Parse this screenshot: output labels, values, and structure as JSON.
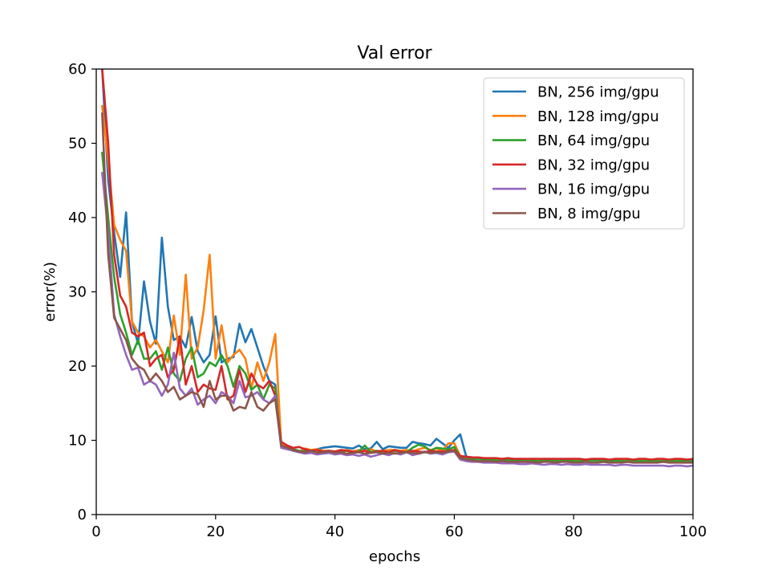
{
  "chart_data": {
    "type": "line",
    "title": "Val error",
    "xlabel": "epochs",
    "ylabel": "error(%)",
    "xlim": [
      0,
      100
    ],
    "ylim": [
      0,
      60
    ],
    "xticks": [
      0,
      20,
      40,
      60,
      80,
      100
    ],
    "yticks": [
      0,
      10,
      20,
      30,
      40,
      50,
      60
    ],
    "grid": false,
    "legend_position": "top-right",
    "x": [
      1,
      2,
      3,
      4,
      5,
      6,
      7,
      8,
      9,
      10,
      11,
      12,
      13,
      14,
      15,
      16,
      17,
      18,
      19,
      20,
      21,
      22,
      23,
      24,
      25,
      26,
      27,
      28,
      29,
      30,
      31,
      32,
      33,
      34,
      35,
      36,
      37,
      38,
      39,
      40,
      41,
      42,
      43,
      44,
      45,
      46,
      47,
      48,
      49,
      50,
      51,
      52,
      53,
      54,
      55,
      56,
      57,
      58,
      59,
      60,
      61,
      62,
      63,
      64,
      65,
      66,
      67,
      68,
      69,
      70,
      71,
      72,
      73,
      74,
      75,
      76,
      77,
      78,
      79,
      80,
      81,
      82,
      83,
      84,
      85,
      86,
      87,
      88,
      89,
      90,
      91,
      92,
      93,
      94,
      95,
      96,
      97,
      98,
      99,
      100
    ],
    "series": [
      {
        "name": "BN, 256 img/gpu",
        "color": "#1f77b4",
        "values": [
          60.0,
          45.0,
          38.0,
          32.0,
          40.7,
          26.0,
          23.0,
          31.4,
          26.0,
          23.0,
          37.3,
          28.0,
          23.5,
          24.0,
          22.5,
          26.6,
          22.0,
          20.5,
          21.5,
          26.7,
          20.5,
          21.0,
          21.2,
          25.7,
          23.2,
          25.0,
          22.5,
          20.0,
          18.0,
          17.5,
          9.5,
          9.0,
          8.6,
          8.4,
          8.7,
          8.6,
          8.8,
          9.0,
          9.1,
          9.2,
          9.1,
          9.0,
          8.9,
          9.3,
          8.8,
          8.9,
          9.8,
          8.8,
          9.2,
          9.1,
          9.0,
          9.0,
          9.8,
          9.6,
          9.5,
          9.3,
          10.2,
          9.6,
          9.0,
          10.0,
          10.8,
          7.8,
          7.7,
          7.6,
          7.5,
          7.5,
          7.4,
          7.3,
          7.4,
          7.4,
          7.3,
          7.3,
          7.4,
          7.3,
          7.3,
          7.4,
          7.4,
          7.3,
          7.4,
          7.3,
          7.4,
          7.4,
          7.3,
          7.3,
          7.3,
          7.2,
          7.3,
          7.3,
          7.4,
          7.3,
          7.3,
          7.2,
          7.3,
          7.3,
          7.2,
          7.3,
          7.2,
          7.3,
          7.3,
          7.2
        ]
      },
      {
        "name": "BN, 128 img/gpu",
        "color": "#ff7f0e",
        "values": [
          55.0,
          47.7,
          39.0,
          37.0,
          35.5,
          26.0,
          24.5,
          24.0,
          22.5,
          23.5,
          22.0,
          20.5,
          26.8,
          21.5,
          32.3,
          21.0,
          22.5,
          27.5,
          35.0,
          21.0,
          25.5,
          20.5,
          21.5,
          22.2,
          21.0,
          17.0,
          20.5,
          18.0,
          20.5,
          24.3,
          9.5,
          9.2,
          8.8,
          8.5,
          8.9,
          8.7,
          8.8,
          8.6,
          8.6,
          8.5,
          8.6,
          8.7,
          8.5,
          8.7,
          8.6,
          8.8,
          8.5,
          8.6,
          8.7,
          8.7,
          8.6,
          8.7,
          8.5,
          8.8,
          9.0,
          8.7,
          8.9,
          8.6,
          9.6,
          9.6,
          7.9,
          7.7,
          7.6,
          7.6,
          7.6,
          7.5,
          7.5,
          7.4,
          7.5,
          7.4,
          7.5,
          7.4,
          7.5,
          7.4,
          7.4,
          7.4,
          7.3,
          7.4,
          7.4,
          7.3,
          7.3,
          7.4,
          7.4,
          7.3,
          7.4,
          7.3,
          7.4,
          7.3,
          7.3,
          7.4,
          7.3,
          7.4,
          7.3,
          7.4,
          7.3,
          7.3,
          7.4,
          7.3,
          7.4,
          7.4
        ]
      },
      {
        "name": "BN, 64 img/gpu",
        "color": "#2ca02c",
        "values": [
          48.7,
          40.0,
          32.0,
          27.0,
          24.5,
          21.5,
          23.5,
          21.0,
          21.0,
          22.0,
          19.5,
          22.5,
          19.0,
          18.0,
          21.0,
          22.5,
          18.5,
          19.0,
          20.5,
          20.0,
          21.5,
          20.0,
          17.2,
          20.0,
          19.0,
          16.8,
          17.5,
          15.5,
          17.5,
          17.0,
          9.2,
          9.0,
          8.8,
          8.6,
          8.5,
          8.3,
          8.4,
          8.5,
          8.6,
          8.4,
          8.5,
          8.6,
          8.4,
          8.5,
          9.3,
          8.4,
          8.6,
          8.5,
          8.4,
          8.6,
          8.5,
          8.4,
          9.0,
          9.4,
          9.2,
          8.6,
          9.0,
          8.9,
          8.8,
          9.1,
          7.8,
          7.6,
          7.5,
          7.5,
          7.4,
          7.4,
          7.3,
          7.3,
          7.4,
          7.3,
          7.3,
          7.2,
          7.3,
          7.2,
          7.3,
          7.3,
          7.2,
          7.3,
          7.3,
          7.2,
          7.2,
          7.3,
          7.3,
          7.3,
          7.2,
          7.3,
          7.3,
          7.2,
          7.2,
          7.3,
          7.2,
          7.2,
          7.3,
          7.2,
          7.2,
          7.3,
          7.2,
          7.2,
          7.3,
          7.3
        ]
      },
      {
        "name": "BN, 32 img/gpu",
        "color": "#d62728",
        "values": [
          60.0,
          50.0,
          35.0,
          29.5,
          28.0,
          24.5,
          24.0,
          24.5,
          20.0,
          21.0,
          21.5,
          18.5,
          19.5,
          24.0,
          17.5,
          20.0,
          16.5,
          17.5,
          17.0,
          16.8,
          20.0,
          15.5,
          16.0,
          19.5,
          16.5,
          19.0,
          17.5,
          17.0,
          18.0,
          16.0,
          9.8,
          9.3,
          9.0,
          9.1,
          8.8,
          8.6,
          8.7,
          8.5,
          8.6,
          8.5,
          8.7,
          8.6,
          8.5,
          8.4,
          8.6,
          8.3,
          8.5,
          8.6,
          8.4,
          8.7,
          8.5,
          8.4,
          8.6,
          8.5,
          8.4,
          8.6,
          8.5,
          8.5,
          8.6,
          8.7,
          7.9,
          7.8,
          7.7,
          7.7,
          7.6,
          7.6,
          7.6,
          7.5,
          7.6,
          7.5,
          7.5,
          7.5,
          7.5,
          7.5,
          7.5,
          7.5,
          7.5,
          7.5,
          7.5,
          7.5,
          7.5,
          7.4,
          7.5,
          7.5,
          7.5,
          7.4,
          7.5,
          7.5,
          7.5,
          7.4,
          7.5,
          7.5,
          7.4,
          7.5,
          7.5,
          7.4,
          7.5,
          7.5,
          7.4,
          7.5
        ]
      },
      {
        "name": "BN, 16 img/gpu",
        "color": "#9467bd",
        "values": [
          46.0,
          38.0,
          27.0,
          24.0,
          21.5,
          19.5,
          19.8,
          17.5,
          18.0,
          17.5,
          16.0,
          17.5,
          21.8,
          17.0,
          16.0,
          17.0,
          14.8,
          15.5,
          16.0,
          15.0,
          16.5,
          16.0,
          15.0,
          18.0,
          15.8,
          16.0,
          16.5,
          15.5,
          15.0,
          16.0,
          9.0,
          8.8,
          8.6,
          8.4,
          8.2,
          8.3,
          8.1,
          8.2,
          8.3,
          8.1,
          8.2,
          8.0,
          8.1,
          7.9,
          8.1,
          7.8,
          8.0,
          8.2,
          8.0,
          8.3,
          8.1,
          8.4,
          8.0,
          8.2,
          8.5,
          8.2,
          8.3,
          8.1,
          8.4,
          8.5,
          7.4,
          7.2,
          7.1,
          7.1,
          7.0,
          7.0,
          7.0,
          6.9,
          6.9,
          6.9,
          6.8,
          6.8,
          6.9,
          6.8,
          6.7,
          6.8,
          6.8,
          6.7,
          6.8,
          6.7,
          6.7,
          6.8,
          6.7,
          6.7,
          6.7,
          6.7,
          6.6,
          6.7,
          6.7,
          6.6,
          6.6,
          6.6,
          6.6,
          6.6,
          6.6,
          6.5,
          6.6,
          6.6,
          6.5,
          6.6
        ]
      },
      {
        "name": "BN, 8 img/gpu",
        "color": "#8c564b",
        "values": [
          54.0,
          35.0,
          26.5,
          25.0,
          23.5,
          21.0,
          20.0,
          19.5,
          18.0,
          19.0,
          18.0,
          16.5,
          17.2,
          15.5,
          16.0,
          16.5,
          16.2,
          14.5,
          18.0,
          15.5,
          16.0,
          16.0,
          14.0,
          14.5,
          14.3,
          16.5,
          14.5,
          14.0,
          15.0,
          15.5,
          9.3,
          9.0,
          8.7,
          8.5,
          8.4,
          8.6,
          8.3,
          8.4,
          8.5,
          8.3,
          8.4,
          8.2,
          8.3,
          8.4,
          8.2,
          8.3,
          8.4,
          8.2,
          8.3,
          8.2,
          8.3,
          8.4,
          8.3,
          8.2,
          8.4,
          8.3,
          8.4,
          8.3,
          8.5,
          8.6,
          7.6,
          7.4,
          7.3,
          7.2,
          7.2,
          7.2,
          7.1,
          7.2,
          7.1,
          7.1,
          7.1,
          7.1,
          7.1,
          7.0,
          7.1,
          7.1,
          7.0,
          7.1,
          7.1,
          7.0,
          7.0,
          7.1,
          7.0,
          7.0,
          7.1,
          7.0,
          7.0,
          7.0,
          7.1,
          7.0,
          7.0,
          7.0,
          7.0,
          7.0,
          7.1,
          7.0,
          7.0,
          7.0,
          7.0,
          7.0
        ]
      }
    ]
  }
}
